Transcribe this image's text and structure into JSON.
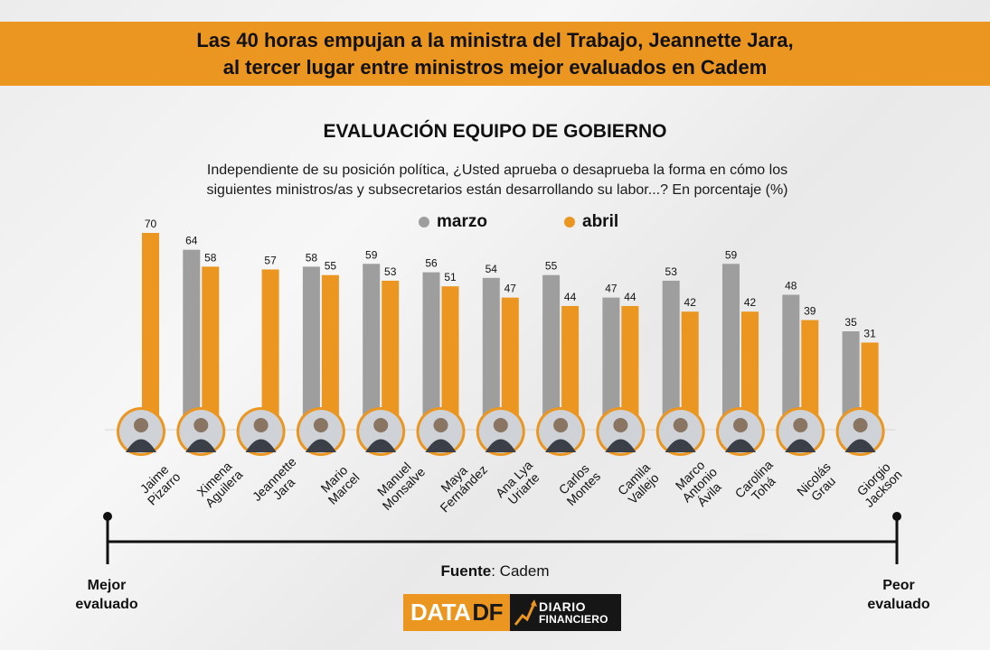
{
  "header": {
    "headline_line1": "Las 40 horas empujan a la ministra del Trabajo, Jeannette Jara,",
    "headline_line2": "al tercer lugar entre ministros mejor evaluados en Cadem"
  },
  "colors": {
    "marzo": "#9e9e9e",
    "abril": "#eb9620",
    "banner": "#eb9620"
  },
  "chart_data": {
    "type": "bar",
    "title": "EVALUACIÓN EQUIPO DE GOBIERNO",
    "subtitle_line1": "Independiente de su posición política, ¿Usted aprueba o desaprueba la forma en cómo los",
    "subtitle_line2": "siguientes ministros/as y subsecretarios están desarrollando su labor...? En porcentaje (%)",
    "legend_position": "top-center",
    "grid": false,
    "ylim": [
      0,
      70
    ],
    "categories": [
      [
        "Jaime",
        "Pizarro"
      ],
      [
        "Ximena",
        "Aguilera"
      ],
      [
        "Jeannette",
        "Jara"
      ],
      [
        "Mario",
        "Marcel"
      ],
      [
        "Manuel",
        "Monsalve"
      ],
      [
        "Maya",
        "Fernández"
      ],
      [
        "Ana Lya",
        "Uriarte"
      ],
      [
        "Carlos",
        "Montes"
      ],
      [
        "Camila",
        "Vallejo"
      ],
      [
        "Marco",
        "Antonio",
        "Ávila"
      ],
      [
        "Carolina",
        "Tohá"
      ],
      [
        "Nicolás",
        "Grau"
      ],
      [
        "Giorgio",
        "Jackson"
      ]
    ],
    "series": [
      {
        "name": "marzo",
        "values": [
          null,
          64,
          null,
          58,
          59,
          56,
          54,
          55,
          47,
          53,
          59,
          48,
          35
        ]
      },
      {
        "name": "abril",
        "values": [
          70,
          58,
          57,
          55,
          53,
          51,
          47,
          44,
          44,
          42,
          42,
          39,
          31
        ]
      }
    ],
    "axis": {
      "left_label": [
        "Mejor",
        "evaluado"
      ],
      "right_label": [
        "Peor",
        "evaluado"
      ]
    }
  },
  "footer": {
    "source_prefix": "Fuente",
    "source_value": ": Cadem",
    "logo_data": "DATA",
    "logo_df": "DF",
    "logo_diario_line1": "DIARIO",
    "logo_diario_line2": "FINANCIERO"
  }
}
